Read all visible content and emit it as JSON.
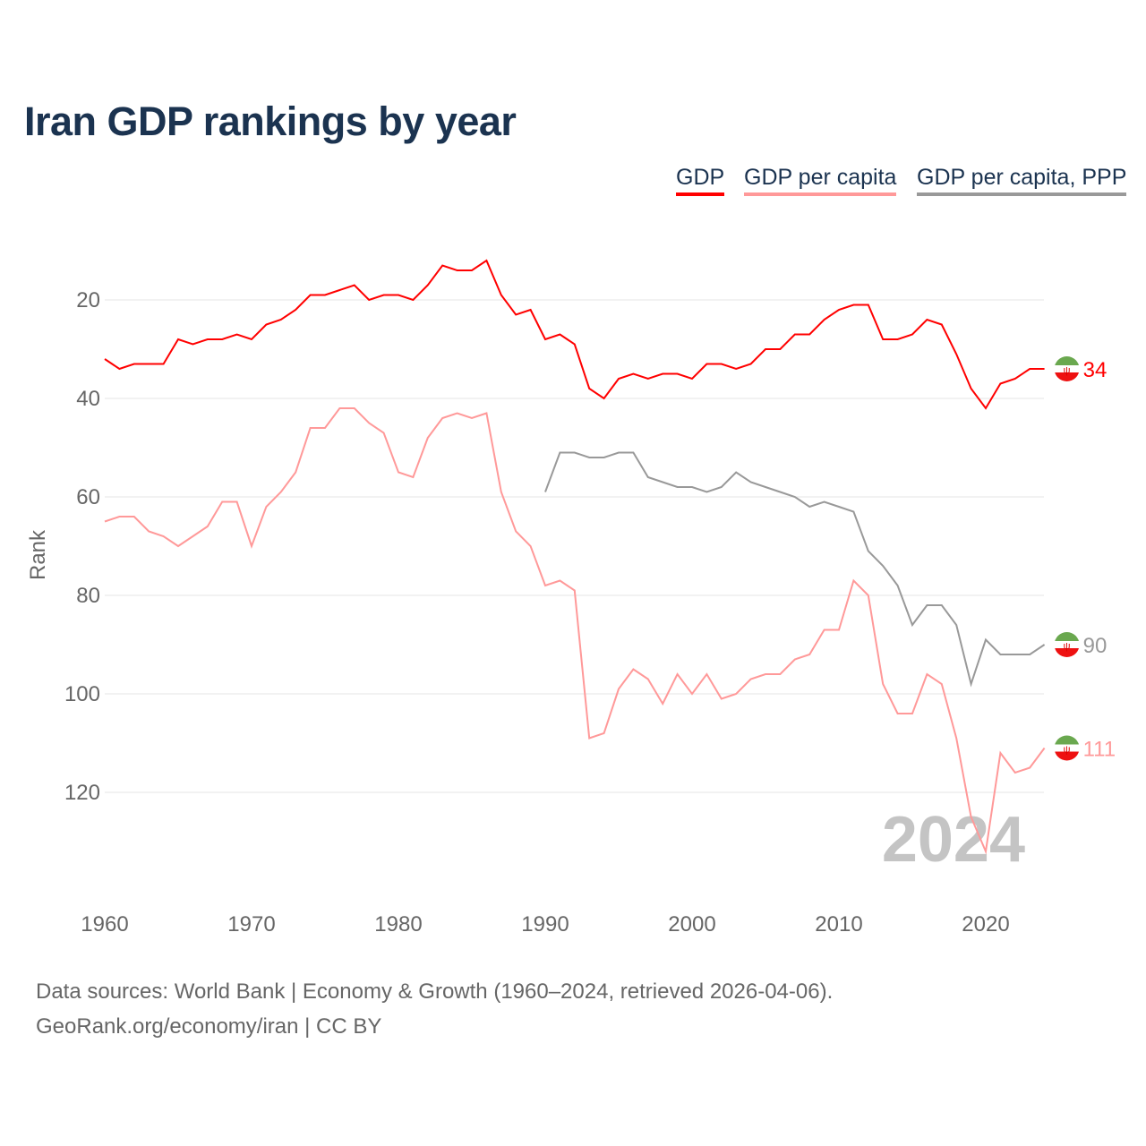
{
  "title": "Iran GDP rankings by year",
  "legend": [
    {
      "label": "GDP",
      "color": "#ff0000"
    },
    {
      "label": "GDP per capita",
      "color": "#ff9999"
    },
    {
      "label": "GDP per capita, PPP",
      "color": "#999999"
    }
  ],
  "source_lines": [
    "Data sources: World Bank | Economy & Growth (1960–2024, retrieved 2026-04-06).",
    "GeoRank.org/economy/iran | CC BY"
  ],
  "chart_data": {
    "type": "line",
    "title": "Iran GDP rankings by year",
    "ylabel": "Rank",
    "xlabel": "",
    "y_inverted": true,
    "ylim": [
      0,
      140
    ],
    "xlim": [
      1960,
      2024
    ],
    "yticks": [
      20,
      40,
      60,
      80,
      100,
      120
    ],
    "xticks": [
      1960,
      1970,
      1980,
      1990,
      2000,
      2010,
      2020
    ],
    "year_watermark": "2024",
    "grid": true,
    "series": [
      {
        "name": "GDP",
        "color": "#ff0000",
        "start": 1960,
        "end_label": "34",
        "values": [
          32,
          34,
          33,
          33,
          33,
          28,
          29,
          28,
          28,
          27,
          28,
          25,
          24,
          22,
          19,
          19,
          18,
          17,
          20,
          19,
          19,
          20,
          17,
          13,
          14,
          14,
          12,
          19,
          23,
          22,
          28,
          27,
          29,
          38,
          40,
          36,
          35,
          36,
          35,
          35,
          36,
          33,
          33,
          34,
          33,
          30,
          30,
          27,
          27,
          24,
          22,
          21,
          21,
          28,
          28,
          27,
          24,
          25,
          31,
          38,
          42,
          37,
          36,
          34,
          34
        ]
      },
      {
        "name": "GDP per capita",
        "color": "#ff9999",
        "start": 1960,
        "end_label": "111",
        "values": [
          65,
          64,
          64,
          67,
          68,
          70,
          68,
          66,
          61,
          61,
          70,
          62,
          59,
          55,
          46,
          46,
          42,
          42,
          45,
          47,
          55,
          56,
          48,
          44,
          43,
          44,
          43,
          59,
          67,
          70,
          78,
          77,
          79,
          109,
          108,
          99,
          95,
          97,
          102,
          96,
          100,
          96,
          101,
          100,
          97,
          96,
          96,
          93,
          92,
          87,
          87,
          77,
          80,
          98,
          104,
          104,
          96,
          98,
          109,
          125,
          132,
          112,
          116,
          115,
          111
        ]
      },
      {
        "name": "GDP per capita, PPP",
        "color": "#999999",
        "start": 1990,
        "end_label": "90",
        "values": [
          59,
          51,
          51,
          52,
          52,
          51,
          51,
          56,
          57,
          58,
          58,
          59,
          58,
          55,
          57,
          58,
          59,
          60,
          62,
          61,
          62,
          63,
          71,
          74,
          78,
          86,
          82,
          82,
          86,
          98,
          89,
          92,
          92,
          92,
          90
        ]
      }
    ]
  }
}
